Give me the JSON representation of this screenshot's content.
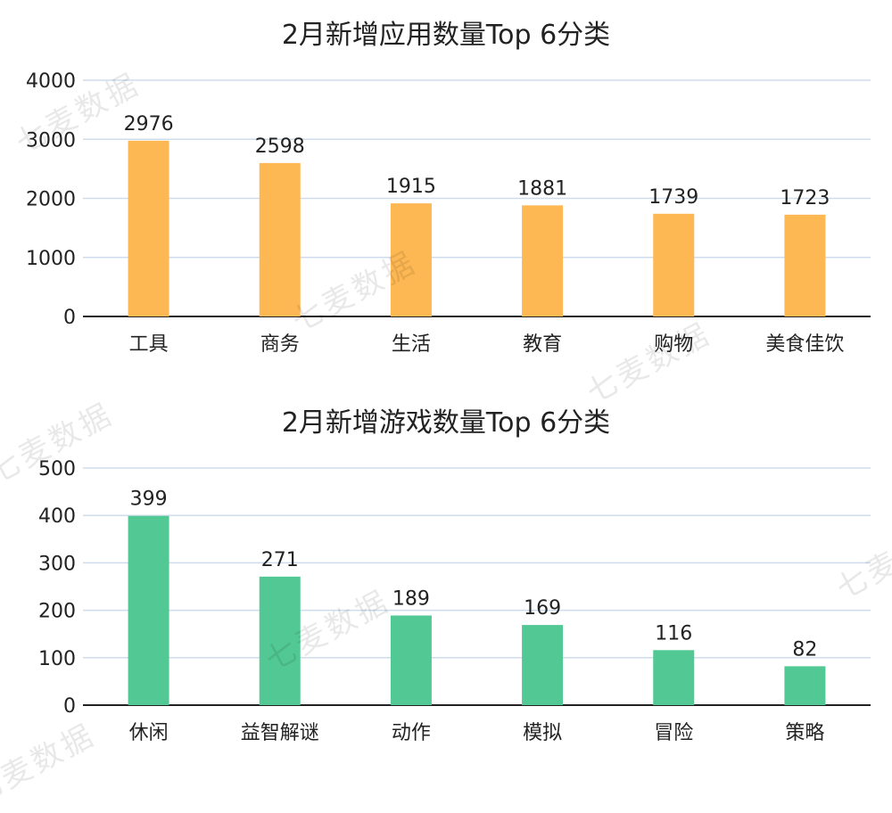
{
  "watermark": "七麦数据",
  "colors": {
    "top_bar": "#FDB753",
    "bottom_bar": "#52C994",
    "grid": "#cfdcec",
    "axis": "#222222"
  },
  "chart_data": [
    {
      "type": "bar",
      "title": "2月新增应用数量Top 6分类",
      "categories": [
        "工具",
        "商务",
        "生活",
        "教育",
        "购物",
        "美食佳饮"
      ],
      "values": [
        2976,
        2598,
        1915,
        1881,
        1739,
        1723
      ],
      "ylim": [
        0,
        4000
      ],
      "yticks": [
        0,
        1000,
        2000,
        3000,
        4000
      ],
      "grid": true,
      "color": "#FDB753"
    },
    {
      "type": "bar",
      "title": "2月新增游戏数量Top 6分类",
      "categories": [
        "休闲",
        "益智解谜",
        "动作",
        "模拟",
        "冒险",
        "策略"
      ],
      "values": [
        399,
        271,
        189,
        169,
        116,
        82
      ],
      "ylim": [
        0,
        500
      ],
      "yticks": [
        0,
        100,
        200,
        300,
        400,
        500
      ],
      "grid": true,
      "color": "#52C994"
    }
  ]
}
